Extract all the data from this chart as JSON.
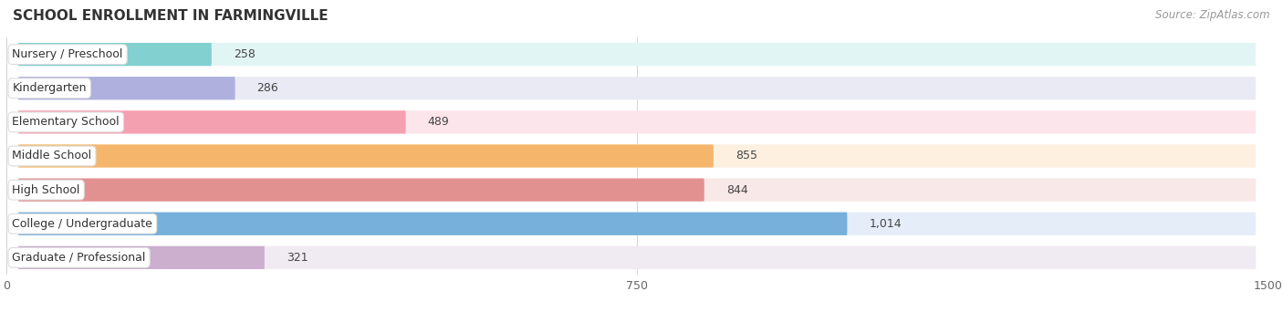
{
  "title": "SCHOOL ENROLLMENT IN FARMINGVILLE",
  "source": "Source: ZipAtlas.com",
  "categories": [
    "Nursery / Preschool",
    "Kindergarten",
    "Elementary School",
    "Middle School",
    "High School",
    "College / Undergraduate",
    "Graduate / Professional"
  ],
  "values": [
    258,
    286,
    489,
    855,
    844,
    1014,
    321
  ],
  "bar_colors": [
    "#78CCCC",
    "#AAAADD",
    "#F599AA",
    "#F5B060",
    "#E08888",
    "#6AAAD8",
    "#C8A8CC"
  ],
  "bar_bg_colors": [
    "#E2F5F5",
    "#EAEAF5",
    "#FDE5EC",
    "#FEF0E0",
    "#F8E8E8",
    "#E5EDF8",
    "#F0EAF2"
  ],
  "row_bg_color": "#F7F7F7",
  "xlim": [
    0,
    1500
  ],
  "xticks": [
    0,
    750,
    1500
  ],
  "background_color": "#FFFFFF",
  "title_fontsize": 11,
  "source_fontsize": 8.5,
  "category_fontsize": 9,
  "value_fontsize": 9
}
